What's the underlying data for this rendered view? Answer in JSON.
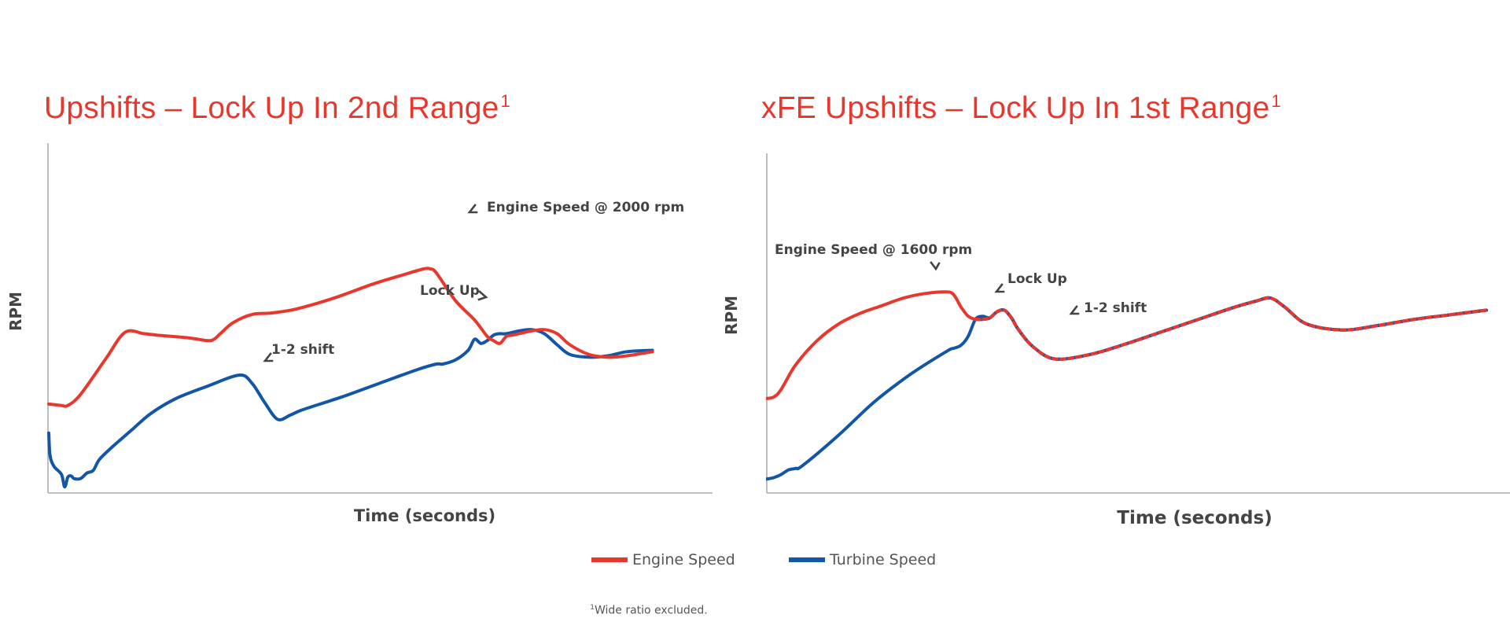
{
  "legend": {
    "engine": {
      "label": "Engine Speed",
      "color": "#e8382e"
    },
    "turbine": {
      "label": "Turbine Speed",
      "color": "#1356a8"
    }
  },
  "footnote": {
    "mark": "1",
    "text": "Wide ratio excluded."
  },
  "chart_data": [
    {
      "type": "line",
      "title": "Upshifts – Lock Up In 2nd Range",
      "title_note": "1",
      "xlabel": "Time (seconds)",
      "ylabel": "RPM",
      "xlim": [
        0,
        100
      ],
      "ylim": [
        0,
        100
      ],
      "grid": false,
      "legend_position": "bottom",
      "series": [
        {
          "name": "Engine Speed",
          "color": "#e8382e",
          "x": [
            0,
            2,
            3,
            5,
            9,
            12,
            15,
            17,
            22,
            25,
            26,
            27,
            29,
            32,
            35,
            39,
            45,
            51,
            56,
            59,
            60,
            61,
            64,
            67,
            69,
            70,
            71,
            72,
            73,
            74,
            76,
            78,
            80,
            82,
            85,
            88,
            91,
            95
          ],
          "values": [
            30.5,
            30,
            30,
            34,
            47,
            56.5,
            56,
            55.5,
            54.5,
            53.5,
            54,
            56,
            60,
            63,
            63.5,
            65,
            69,
            74,
            77.5,
            79.5,
            79.5,
            78,
            68,
            61,
            55,
            53.5,
            52.5,
            55,
            55.5,
            56,
            57,
            57.5,
            56,
            52,
            48.5,
            47.5,
            48,
            49.5
          ]
        },
        {
          "name": "Turbine Speed",
          "color": "#1356a8",
          "x": [
            0,
            0.2,
            0.8,
            2,
            2.5,
            3,
            3.5,
            4,
            5,
            6,
            7,
            8,
            10,
            13,
            16,
            20,
            25,
            30,
            32,
            34,
            36,
            38,
            40,
            46,
            52,
            58,
            61,
            62,
            64,
            66,
            67,
            68,
            69,
            70,
            71,
            72,
            74,
            76,
            78,
            80,
            82,
            85,
            88,
            91,
            95
          ],
          "values": [
            20,
            12,
            8,
            5,
            0.5,
            4,
            4.5,
            3.5,
            3.5,
            5.5,
            6.5,
            10.5,
            15,
            21,
            27,
            32.5,
            37,
            41,
            38,
            31,
            25,
            26.5,
            28.5,
            33,
            38,
            43,
            45,
            45,
            46.5,
            50,
            54,
            52.5,
            53.5,
            55.5,
            56,
            56,
            57,
            57.5,
            56,
            52,
            48.5,
            47.5,
            48,
            49.5,
            50
          ]
        }
      ],
      "annotations": [
        {
          "text": "Engine Speed @ 2000 rpm",
          "x": 61,
          "y": 79.5
        },
        {
          "text": "Lock Up",
          "x": 69,
          "y": 58
        },
        {
          "text": "1-2 shift",
          "x": 32,
          "y": 41
        }
      ]
    },
    {
      "type": "line",
      "title": "xFE Upshifts – Lock Up In 1st Range",
      "title_note": "1",
      "xlabel": "Time (seconds)",
      "ylabel": "RPM",
      "xlim": [
        0,
        100
      ],
      "ylim": [
        0,
        100
      ],
      "grid": false,
      "legend_position": "bottom",
      "series": [
        {
          "name": "Engine Speed",
          "color": "#e8382e",
          "x": [
            0,
            1,
            2,
            4,
            7,
            10,
            13,
            16,
            19,
            22,
            25,
            26,
            27,
            28,
            29,
            30,
            31,
            32,
            33,
            34,
            35,
            37,
            40,
            45,
            50,
            55,
            60,
            65,
            68,
            70,
            72,
            75,
            80,
            85,
            90,
            95,
            100
          ],
          "values": [
            29,
            29.5,
            32,
            40,
            48,
            53.5,
            57,
            59.5,
            62,
            63.5,
            64,
            63,
            59,
            56,
            55,
            55,
            55.5,
            57.5,
            58,
            55.5,
            51.5,
            46,
            42,
            43.5,
            47,
            51,
            55,
            59,
            61,
            62,
            59,
            53.5,
            51.5,
            53,
            55,
            56.5,
            58
          ]
        },
        {
          "name": "Turbine Speed",
          "color": "#1356a8",
          "x": [
            0,
            1,
            2,
            3,
            4,
            5,
            10,
            15,
            20,
            25,
            26,
            27,
            28,
            29,
            30,
            31,
            32,
            33,
            34,
            35,
            37,
            40,
            45,
            50,
            55,
            60,
            65,
            68,
            70,
            72,
            75,
            80,
            85,
            90,
            95,
            100
          ],
          "values": [
            2.5,
            3,
            4,
            5.5,
            6,
            7,
            17,
            28,
            37,
            44.5,
            45.5,
            46.5,
            49.5,
            55,
            56,
            55.5,
            57.5,
            58,
            55.5,
            51.5,
            46,
            42,
            43.5,
            47,
            51,
            55,
            59,
            61,
            62,
            59,
            53.5,
            51.5,
            53,
            55,
            56.5,
            58
          ]
        }
      ],
      "annotations": [
        {
          "text": "Engine Speed @ 1600 rpm",
          "x": 23,
          "y": 64
        },
        {
          "text": "Lock Up",
          "x": 31,
          "y": 56
        },
        {
          "text": "1-2 shift",
          "x": 41,
          "y": 51
        }
      ]
    }
  ]
}
